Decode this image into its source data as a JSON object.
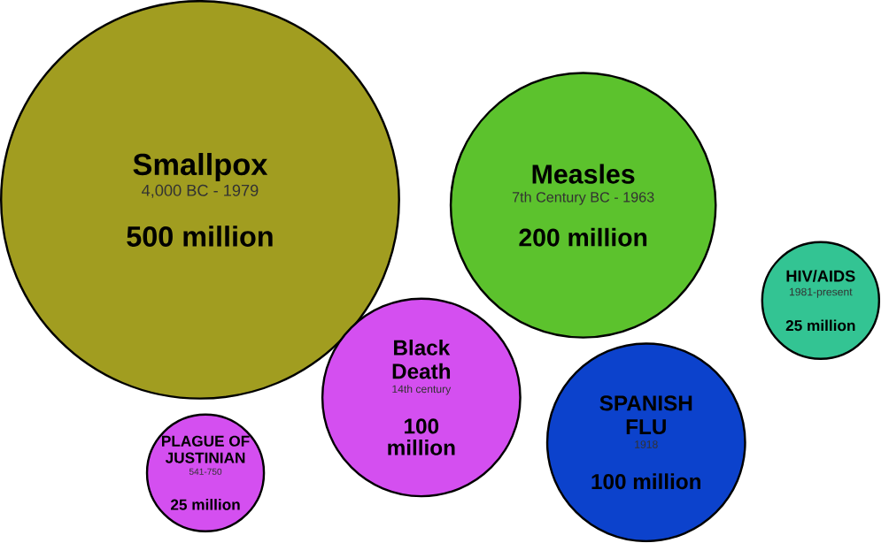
{
  "chart_data": {
    "type": "other",
    "categories": [
      "Smallpox",
      "Measles",
      "HIV/AIDS",
      "Black Death",
      "SPANISH FLU",
      "PLAGUE OF JUSTINIAN"
    ],
    "annotations": [
      "4,000 BC - 1979",
      "7th Century BC - 1963",
      "1981-present",
      "14th century",
      "1918",
      "541-750"
    ],
    "values": [
      500,
      200,
      25,
      100,
      100,
      25
    ],
    "value_labels": [
      "500 million",
      "200 million",
      "25 million",
      "100 million",
      "100 million",
      "25 million"
    ],
    "colors": [
      "#a19d20",
      "#5cc22d",
      "#33c493",
      "#d44ff0",
      "#0c42cc",
      "#d44ff0"
    ]
  }
}
